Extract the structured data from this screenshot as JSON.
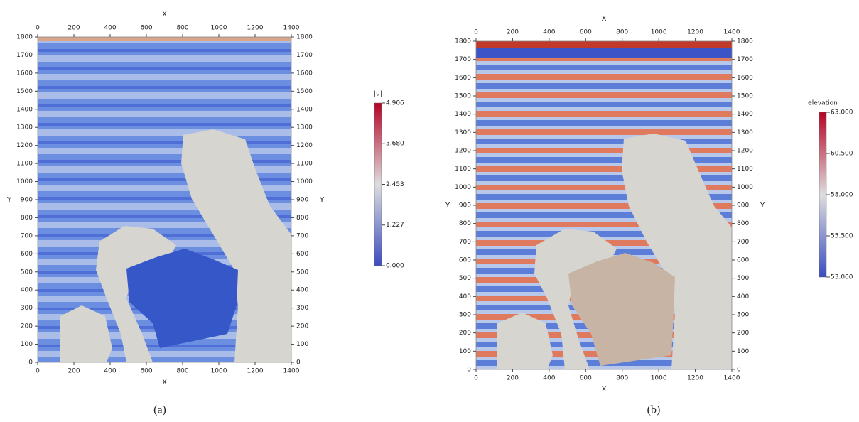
{
  "panels": [
    {
      "caption": "(a)",
      "x_label": "X",
      "y_label": "Y",
      "xlim": [
        0,
        1400
      ],
      "xticks": [
        0,
        200,
        400,
        600,
        800,
        1000,
        1200,
        1400
      ],
      "ylim": [
        0,
        1800
      ],
      "yticks": [
        0,
        100,
        200,
        300,
        400,
        500,
        600,
        700,
        800,
        900,
        1000,
        1100,
        1200,
        1300,
        1400,
        1500,
        1600,
        1700,
        1800
      ],
      "colorbar": {
        "title": "|u|",
        "lim": [
          0,
          4.906
        ],
        "ticks": [
          {
            "value": 0,
            "label": "0.000"
          },
          1.227,
          2.453,
          {
            "value": 3.68,
            "label": "3.680"
          },
          4.906
        ]
      }
    },
    {
      "caption": "(b)",
      "x_label": "X",
      "y_label": "Y",
      "xlim": [
        0,
        1400
      ],
      "xticks": [
        0,
        200,
        400,
        600,
        800,
        1000,
        1200,
        1400
      ],
      "ylim": [
        0,
        1800
      ],
      "yticks": [
        0,
        100,
        200,
        300,
        400,
        500,
        600,
        700,
        800,
        900,
        1000,
        1100,
        1200,
        1300,
        1400,
        1500,
        1600,
        1700,
        1800
      ],
      "colorbar": {
        "title": "elevation",
        "lim": [
          53,
          63
        ],
        "ticks": [
          {
            "value": 53,
            "label": "53.000"
          },
          {
            "value": 55.5,
            "label": "55.500"
          },
          {
            "value": 58,
            "label": "58.000"
          },
          {
            "value": 60.5,
            "label": "60.500"
          },
          {
            "value": 63,
            "label": "63.000"
          }
        ]
      }
    }
  ]
}
